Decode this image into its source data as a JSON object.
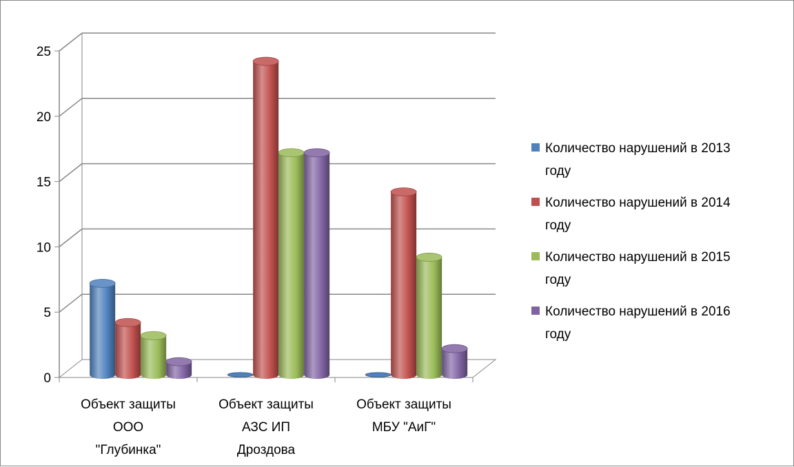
{
  "chart_data": {
    "type": "bar",
    "title": "",
    "xlabel": "",
    "ylabel": "",
    "ylim": [
      0,
      25
    ],
    "yticks": [
      "0",
      "5",
      "10",
      "15",
      "20",
      "25"
    ],
    "grid": true,
    "legend_position": "right",
    "categories": [
      [
        "Объект защиты",
        "ООО",
        "\"Глубинка\""
      ],
      [
        "Объект защиты",
        "АЗС ИП",
        "Дроздова"
      ],
      [
        "Объект защиты",
        "МБУ \"АиГ\""
      ]
    ],
    "series": [
      {
        "name": [
          "Количество нарушений в 2013",
          "году"
        ],
        "values": [
          7,
          0,
          0
        ],
        "color": "#4f81bd"
      },
      {
        "name": [
          "Количество нарушений в 2014",
          "году"
        ],
        "values": [
          4,
          24,
          14
        ],
        "color": "#c0504d"
      },
      {
        "name": [
          "Количество нарушений в 2015",
          "году"
        ],
        "values": [
          3,
          17,
          9
        ],
        "color": "#9bbb59"
      },
      {
        "name": [
          "Количество нарушений в 2016",
          "году"
        ],
        "values": [
          1,
          17,
          2
        ],
        "color": "#8064a2"
      }
    ]
  }
}
